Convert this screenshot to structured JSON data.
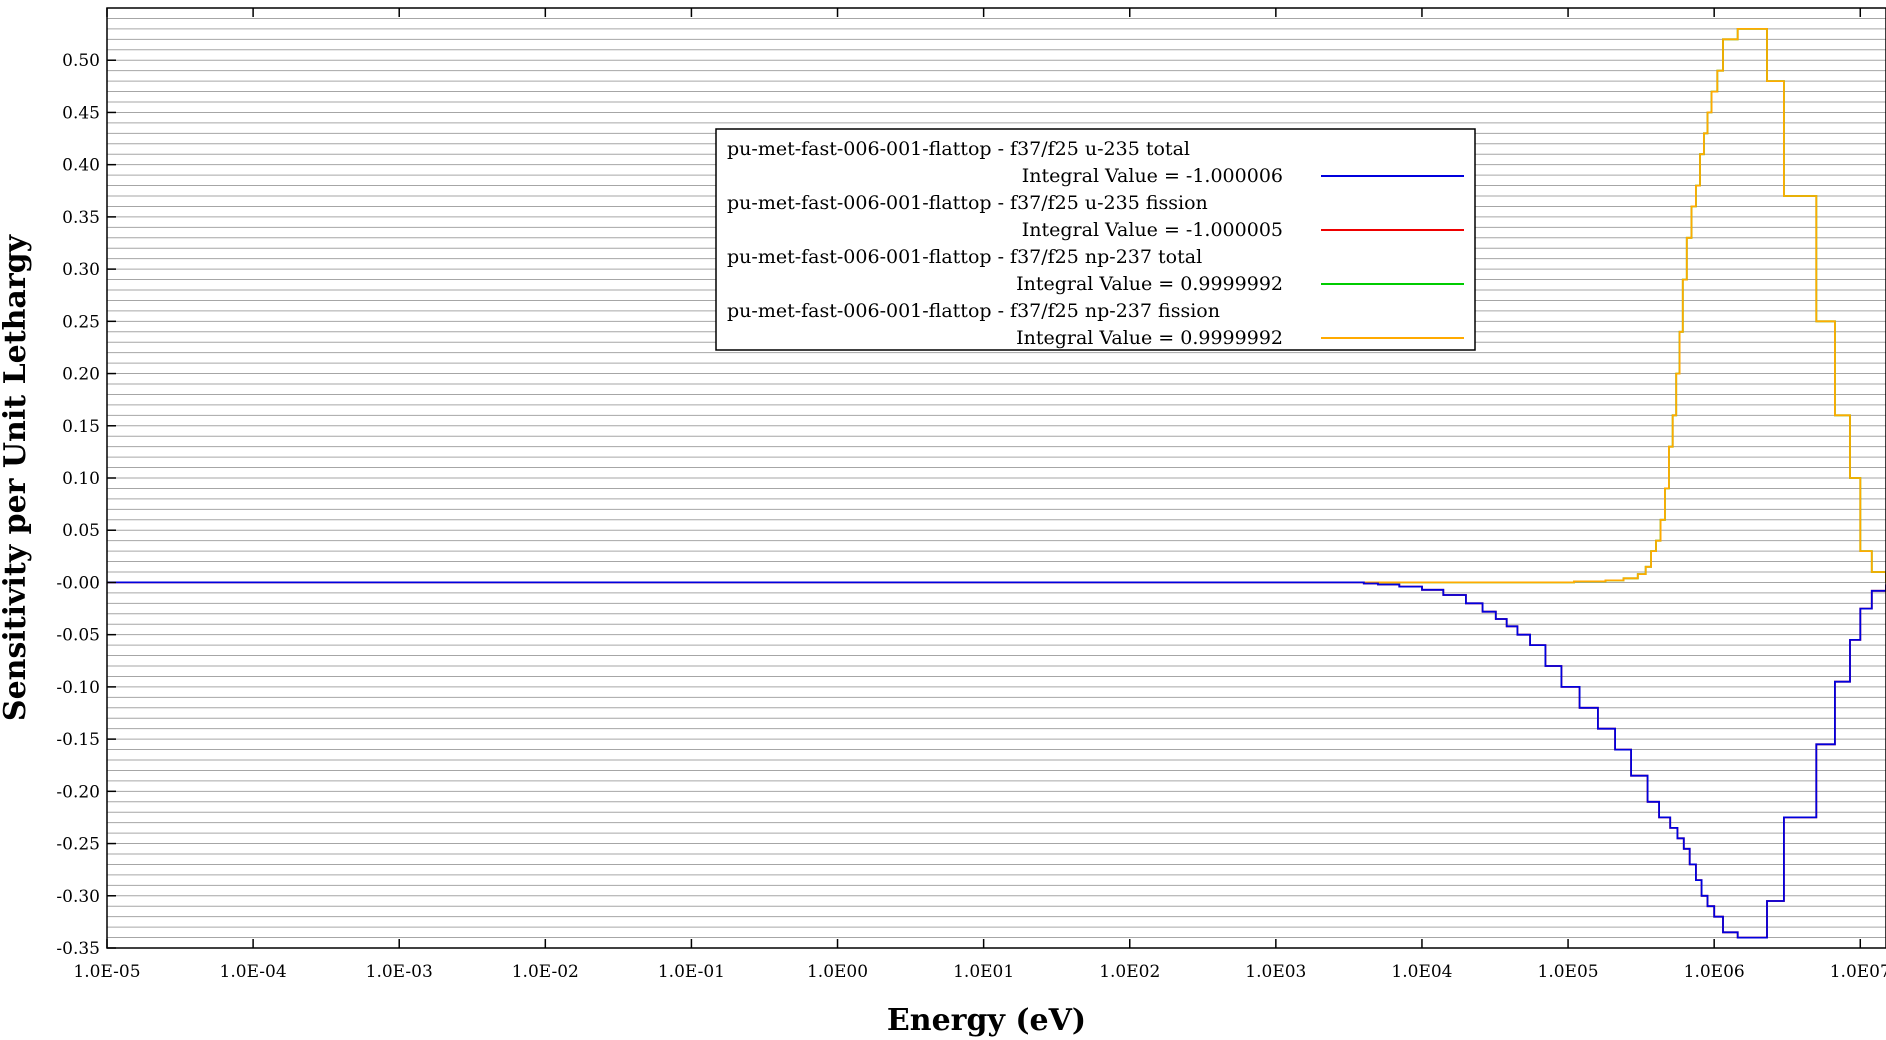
{
  "chart_data": {
    "type": "line",
    "xlabel": "Energy (eV)",
    "ylabel": "Sensitivity per Unit Lethargy",
    "x_scale": "log",
    "xlim": [
      1e-05,
      15000000
    ],
    "ylim": [
      -0.35,
      0.55
    ],
    "x_ticks": [
      {
        "value": 1e-05,
        "label": "1.0E-05"
      },
      {
        "value": 0.0001,
        "label": "1.0E-04"
      },
      {
        "value": 0.001,
        "label": "1.0E-03"
      },
      {
        "value": 0.01,
        "label": "1.0E-02"
      },
      {
        "value": 0.1,
        "label": "1.0E-01"
      },
      {
        "value": 1,
        "label": "1.0E00"
      },
      {
        "value": 10,
        "label": "1.0E01"
      },
      {
        "value": 100,
        "label": "1.0E02"
      },
      {
        "value": 1000,
        "label": "1.0E03"
      },
      {
        "value": 10000,
        "label": "1.0E04"
      },
      {
        "value": 100000,
        "label": "1.0E05"
      },
      {
        "value": 1000000,
        "label": "1.0E06"
      },
      {
        "value": 10000000,
        "label": "1.0E07"
      }
    ],
    "y_ticks": [
      {
        "value": 0.5,
        "label": "0.50"
      },
      {
        "value": 0.45,
        "label": "0.45"
      },
      {
        "value": 0.4,
        "label": "0.40"
      },
      {
        "value": 0.35,
        "label": "0.35"
      },
      {
        "value": 0.3,
        "label": "0.30"
      },
      {
        "value": 0.25,
        "label": "0.25"
      },
      {
        "value": 0.2,
        "label": "0.20"
      },
      {
        "value": 0.15,
        "label": "0.15"
      },
      {
        "value": 0.1,
        "label": "0.10"
      },
      {
        "value": 0.05,
        "label": "0.05"
      },
      {
        "value": 0.0,
        "label": "-0.00"
      },
      {
        "value": -0.05,
        "label": "-0.05"
      },
      {
        "value": -0.1,
        "label": "-0.10"
      },
      {
        "value": -0.15,
        "label": "-0.15"
      },
      {
        "value": -0.2,
        "label": "-0.20"
      },
      {
        "value": -0.25,
        "label": "-0.25"
      },
      {
        "value": -0.3,
        "label": "-0.30"
      },
      {
        "value": -0.35,
        "label": "-0.35"
      }
    ],
    "grid": true,
    "legend_position": "upper-center",
    "series": [
      {
        "name": "pu-met-fast-006-001-flattop - f37/f25 np-237 total",
        "integral": "Integral Value = 0.9999992",
        "color": "#00cc00",
        "x": [
          4000,
          70000,
          110000,
          180000,
          240000,
          300000,
          340000,
          370000,
          400000,
          430000,
          460000,
          490000,
          520000,
          550000,
          580000,
          610000,
          650000,
          700000,
          750000,
          800000,
          850000,
          900000,
          960000,
          1050000,
          1150000,
          1450000,
          1800000,
          2300000,
          3000000,
          5000000,
          6700000,
          8500000,
          10000000,
          12000000,
          15000000
        ],
        "y": [
          0.0,
          0.0,
          0.001,
          0.002,
          0.004,
          0.008,
          0.015,
          0.03,
          0.04,
          0.06,
          0.09,
          0.13,
          0.16,
          0.2,
          0.24,
          0.29,
          0.33,
          0.36,
          0.38,
          0.41,
          0.43,
          0.45,
          0.47,
          0.49,
          0.52,
          0.53,
          0.53,
          0.48,
          0.37,
          0.25,
          0.16,
          0.1,
          0.03,
          0.01,
          0.0
        ]
      },
      {
        "name": "pu-met-fast-006-001-flattop - f37/f25 np-237 fission",
        "integral": "Integral Value = 0.9999992",
        "color": "#ffaa00",
        "x": [
          4000,
          70000,
          110000,
          180000,
          240000,
          300000,
          340000,
          370000,
          400000,
          430000,
          460000,
          490000,
          520000,
          550000,
          580000,
          610000,
          650000,
          700000,
          750000,
          800000,
          850000,
          900000,
          960000,
          1050000,
          1150000,
          1450000,
          1800000,
          2300000,
          3000000,
          5000000,
          6700000,
          8500000,
          10000000,
          12000000,
          15000000
        ],
        "y": [
          0.0,
          0.0,
          0.001,
          0.002,
          0.004,
          0.008,
          0.015,
          0.03,
          0.04,
          0.06,
          0.09,
          0.13,
          0.16,
          0.2,
          0.24,
          0.29,
          0.33,
          0.36,
          0.38,
          0.41,
          0.43,
          0.45,
          0.47,
          0.49,
          0.52,
          0.53,
          0.53,
          0.48,
          0.37,
          0.25,
          0.16,
          0.1,
          0.03,
          0.01,
          0.0
        ]
      },
      {
        "name": "pu-met-fast-006-001-flattop - f37/f25 u-235 fission",
        "integral": "Integral Value = -1.000005",
        "color": "#ee0000",
        "x": [
          1e-05,
          4000,
          5000,
          7000,
          10000,
          14000,
          20000,
          26000,
          32000,
          38000,
          45000,
          55000,
          70000,
          90000,
          120000,
          160000,
          210000,
          270000,
          350000,
          420000,
          500000,
          560000,
          620000,
          680000,
          750000,
          820000,
          900000,
          1000000,
          1150000,
          1450000,
          1800000,
          2300000,
          3000000,
          5000000,
          6700000,
          8500000,
          10000000,
          12000000,
          15000000
        ],
        "y": [
          0.0,
          -0.001,
          -0.002,
          -0.004,
          -0.007,
          -0.012,
          -0.02,
          -0.028,
          -0.035,
          -0.042,
          -0.05,
          -0.06,
          -0.08,
          -0.1,
          -0.12,
          -0.14,
          -0.16,
          -0.185,
          -0.21,
          -0.225,
          -0.235,
          -0.245,
          -0.255,
          -0.27,
          -0.285,
          -0.3,
          -0.31,
          -0.32,
          -0.335,
          -0.34,
          -0.34,
          -0.305,
          -0.225,
          -0.155,
          -0.095,
          -0.055,
          -0.025,
          -0.008,
          -0.002
        ]
      },
      {
        "name": "pu-met-fast-006-001-flattop - f37/f25 u-235 total",
        "integral": "Integral Value = -1.000006",
        "color": "#0000dd",
        "x": [
          1e-05,
          4000,
          5000,
          7000,
          10000,
          14000,
          20000,
          26000,
          32000,
          38000,
          45000,
          55000,
          70000,
          90000,
          120000,
          160000,
          210000,
          270000,
          350000,
          420000,
          500000,
          560000,
          620000,
          680000,
          750000,
          820000,
          900000,
          1000000,
          1150000,
          1450000,
          1800000,
          2300000,
          3000000,
          5000000,
          6700000,
          8500000,
          10000000,
          12000000,
          15000000
        ],
        "y": [
          0.0,
          -0.001,
          -0.002,
          -0.004,
          -0.007,
          -0.012,
          -0.02,
          -0.028,
          -0.035,
          -0.042,
          -0.05,
          -0.06,
          -0.08,
          -0.1,
          -0.12,
          -0.14,
          -0.16,
          -0.185,
          -0.21,
          -0.225,
          -0.235,
          -0.245,
          -0.255,
          -0.27,
          -0.285,
          -0.3,
          -0.31,
          -0.32,
          -0.335,
          -0.34,
          -0.34,
          -0.305,
          -0.225,
          -0.155,
          -0.095,
          -0.055,
          -0.025,
          -0.008,
          -0.002
        ]
      }
    ],
    "legend": [
      {
        "label": "pu-met-fast-006-001-flattop - f37/f25 u-235 total",
        "integral": "Integral Value = -1.000006",
        "color": "#0000dd"
      },
      {
        "label": "pu-met-fast-006-001-flattop - f37/f25 u-235 fission",
        "integral": "Integral Value = -1.000005",
        "color": "#ee0000"
      },
      {
        "label": "pu-met-fast-006-001-flattop - f37/f25 np-237 total",
        "integral": "Integral Value = 0.9999992",
        "color": "#00cc00"
      },
      {
        "label": "pu-met-fast-006-001-flattop - f37/f25 np-237 fission",
        "integral": "Integral Value = 0.9999992",
        "color": "#ffaa00"
      }
    ]
  }
}
